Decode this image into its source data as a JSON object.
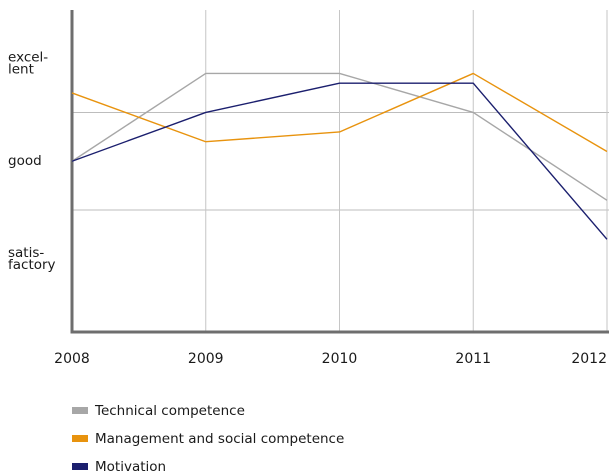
{
  "chart_data": {
    "type": "line",
    "categories": [
      "2008",
      "2009",
      "2010",
      "2011",
      "2012"
    ],
    "y_levels": [
      {
        "value": 1,
        "lines": [
          "satis-",
          "factory"
        ]
      },
      {
        "value": 2,
        "lines": [
          "good"
        ]
      },
      {
        "value": 3,
        "lines": [
          "excel-",
          "lent"
        ]
      }
    ],
    "ylim": [
      0.25,
      3.55
    ],
    "grid": true,
    "legend_position": "bottom-left",
    "series": [
      {
        "name": "Technical competence",
        "color": "#a7a7a7",
        "values": [
          2.0,
          2.9,
          2.9,
          2.5,
          1.6
        ]
      },
      {
        "name": "Management and social competence",
        "color": "#e8930e",
        "values": [
          2.7,
          2.2,
          2.3,
          2.9,
          2.1
        ]
      },
      {
        "name": "Motivation",
        "color": "#1b1f6e",
        "values": [
          2.0,
          2.5,
          2.8,
          2.8,
          1.2
        ]
      }
    ]
  }
}
